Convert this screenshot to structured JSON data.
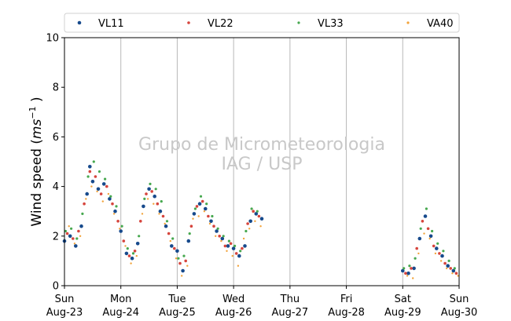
{
  "chart_data": {
    "type": "scatter",
    "title": "",
    "ylabel_main": "Wind speed (",
    "ylabel_unit": "ms",
    "ylabel_exp": "−1",
    "ylabel_close": " )",
    "xlabel": "",
    "watermark": [
      "Grupo de Micrometeorologia",
      "IAG / USP"
    ],
    "ylim": [
      0,
      10
    ],
    "xlim": [
      0,
      7
    ],
    "yticks": [
      "0",
      "2",
      "4",
      "6",
      "8",
      "10"
    ],
    "xticks": [
      {
        "day": "Sun",
        "date": "Aug-23"
      },
      {
        "day": "Mon",
        "date": "Aug-24"
      },
      {
        "day": "Tue",
        "date": "Aug-25"
      },
      {
        "day": "Wed",
        "date": "Aug-26"
      },
      {
        "day": "Thu",
        "date": "Aug-27"
      },
      {
        "day": "Fri",
        "date": "Aug-28"
      },
      {
        "day": "Sat",
        "date": "Aug-29"
      },
      {
        "day": "Sun",
        "date": "Aug-30"
      }
    ],
    "grid": "x-major",
    "legend_position": "top",
    "series": [
      {
        "name": "VL11",
        "color": "#174a8c",
        "marker_size": 2.3,
        "points": [
          [
            0.0,
            1.8
          ],
          [
            0.1,
            2.0
          ],
          [
            0.2,
            1.6
          ],
          [
            0.3,
            2.4
          ],
          [
            0.4,
            3.7
          ],
          [
            0.45,
            4.8
          ],
          [
            0.5,
            4.2
          ],
          [
            0.6,
            3.9
          ],
          [
            0.7,
            4.1
          ],
          [
            0.8,
            3.5
          ],
          [
            0.9,
            3.0
          ],
          [
            1.0,
            2.2
          ],
          [
            1.1,
            1.3
          ],
          [
            1.2,
            1.1
          ],
          [
            1.3,
            1.7
          ],
          [
            1.4,
            3.2
          ],
          [
            1.5,
            3.9
          ],
          [
            1.6,
            3.6
          ],
          [
            1.7,
            3.0
          ],
          [
            1.8,
            2.4
          ],
          [
            1.9,
            1.6
          ],
          [
            2.0,
            1.4
          ],
          [
            2.1,
            0.6
          ],
          [
            2.2,
            1.8
          ],
          [
            2.3,
            2.9
          ],
          [
            2.4,
            3.3
          ],
          [
            2.5,
            3.1
          ],
          [
            2.6,
            2.6
          ],
          [
            2.7,
            2.2
          ],
          [
            2.8,
            1.9
          ],
          [
            2.9,
            1.6
          ],
          [
            3.0,
            1.5
          ],
          [
            3.1,
            1.2
          ],
          [
            3.2,
            1.6
          ],
          [
            3.3,
            2.6
          ],
          [
            3.4,
            2.9
          ],
          [
            3.5,
            2.7
          ],
          [
            6.0,
            0.6
          ],
          [
            6.1,
            0.5
          ],
          [
            6.2,
            0.7
          ],
          [
            6.3,
            1.9
          ],
          [
            6.4,
            2.8
          ],
          [
            6.5,
            2.0
          ],
          [
            6.6,
            1.5
          ],
          [
            6.7,
            1.2
          ],
          [
            6.8,
            0.8
          ],
          [
            6.9,
            0.6
          ]
        ]
      },
      {
        "name": "VL22",
        "color": "#d6453d",
        "marker_size": 1.8,
        "points": [
          [
            0.05,
            2.1
          ],
          [
            0.15,
            1.9
          ],
          [
            0.25,
            2.2
          ],
          [
            0.35,
            3.3
          ],
          [
            0.45,
            4.6
          ],
          [
            0.55,
            4.4
          ],
          [
            0.65,
            3.7
          ],
          [
            0.75,
            4.0
          ],
          [
            0.85,
            3.3
          ],
          [
            0.95,
            2.6
          ],
          [
            1.05,
            1.8
          ],
          [
            1.15,
            1.2
          ],
          [
            1.25,
            1.4
          ],
          [
            1.35,
            2.6
          ],
          [
            1.45,
            3.7
          ],
          [
            1.55,
            3.8
          ],
          [
            1.65,
            3.3
          ],
          [
            1.75,
            2.8
          ],
          [
            1.85,
            2.1
          ],
          [
            1.95,
            1.5
          ],
          [
            2.05,
            0.9
          ],
          [
            2.15,
            1.0
          ],
          [
            2.25,
            2.4
          ],
          [
            2.35,
            3.2
          ],
          [
            2.45,
            3.4
          ],
          [
            2.55,
            2.8
          ],
          [
            2.65,
            2.4
          ],
          [
            2.75,
            2.0
          ],
          [
            2.85,
            1.6
          ],
          [
            2.95,
            1.7
          ],
          [
            3.05,
            1.3
          ],
          [
            3.15,
            1.5
          ],
          [
            3.25,
            2.5
          ],
          [
            3.35,
            3.0
          ],
          [
            3.45,
            2.8
          ],
          [
            6.05,
            0.5
          ],
          [
            6.15,
            0.7
          ],
          [
            6.25,
            1.5
          ],
          [
            6.35,
            2.6
          ],
          [
            6.45,
            2.3
          ],
          [
            6.55,
            1.6
          ],
          [
            6.65,
            1.3
          ],
          [
            6.75,
            0.9
          ],
          [
            6.85,
            0.7
          ],
          [
            6.95,
            0.5
          ]
        ]
      },
      {
        "name": "VL33",
        "color": "#47a84f",
        "marker_size": 1.6,
        "points": [
          [
            0.02,
            2.2
          ],
          [
            0.12,
            2.3
          ],
          [
            0.22,
            1.9
          ],
          [
            0.32,
            2.9
          ],
          [
            0.42,
            4.4
          ],
          [
            0.52,
            5.0
          ],
          [
            0.62,
            4.6
          ],
          [
            0.72,
            4.3
          ],
          [
            0.82,
            3.6
          ],
          [
            0.92,
            3.2
          ],
          [
            1.02,
            2.4
          ],
          [
            1.12,
            1.5
          ],
          [
            1.22,
            1.3
          ],
          [
            1.32,
            2.0
          ],
          [
            1.42,
            3.5
          ],
          [
            1.52,
            4.1
          ],
          [
            1.62,
            3.9
          ],
          [
            1.72,
            3.4
          ],
          [
            1.82,
            2.6
          ],
          [
            1.92,
            1.9
          ],
          [
            2.02,
            1.1
          ],
          [
            2.12,
            1.2
          ],
          [
            2.22,
            2.1
          ],
          [
            2.32,
            3.1
          ],
          [
            2.42,
            3.6
          ],
          [
            2.52,
            3.3
          ],
          [
            2.62,
            2.8
          ],
          [
            2.72,
            2.3
          ],
          [
            2.82,
            2.0
          ],
          [
            2.92,
            1.8
          ],
          [
            3.02,
            1.6
          ],
          [
            3.12,
            1.4
          ],
          [
            3.22,
            2.2
          ],
          [
            3.32,
            3.1
          ],
          [
            3.42,
            3.0
          ],
          [
            6.02,
            0.7
          ],
          [
            6.12,
            0.8
          ],
          [
            6.22,
            1.1
          ],
          [
            6.32,
            2.3
          ],
          [
            6.42,
            3.1
          ],
          [
            6.52,
            2.2
          ],
          [
            6.62,
            1.7
          ],
          [
            6.72,
            1.4
          ],
          [
            6.82,
            1.0
          ],
          [
            6.92,
            0.7
          ]
        ]
      },
      {
        "name": "VA40",
        "color": "#f2a33a",
        "marker_size": 1.2,
        "points": [
          [
            0.08,
            2.4
          ],
          [
            0.18,
            1.7
          ],
          [
            0.28,
            2.0
          ],
          [
            0.38,
            3.5
          ],
          [
            0.48,
            4.0
          ],
          [
            0.58,
            3.8
          ],
          [
            0.68,
            3.4
          ],
          [
            0.78,
            3.7
          ],
          [
            0.88,
            2.9
          ],
          [
            0.98,
            2.3
          ],
          [
            1.08,
            1.6
          ],
          [
            1.18,
            0.9
          ],
          [
            1.28,
            1.2
          ],
          [
            1.38,
            2.9
          ],
          [
            1.48,
            3.5
          ],
          [
            1.58,
            3.3
          ],
          [
            1.68,
            2.9
          ],
          [
            1.78,
            2.5
          ],
          [
            1.88,
            1.8
          ],
          [
            1.98,
            1.1
          ],
          [
            2.08,
            0.4
          ],
          [
            2.18,
            0.8
          ],
          [
            2.28,
            2.7
          ],
          [
            2.38,
            2.8
          ],
          [
            2.48,
            3.0
          ],
          [
            2.58,
            2.5
          ],
          [
            2.68,
            2.0
          ],
          [
            2.78,
            1.8
          ],
          [
            2.88,
            1.4
          ],
          [
            2.98,
            1.2
          ],
          [
            3.08,
            0.8
          ],
          [
            3.18,
            1.9
          ],
          [
            3.28,
            2.3
          ],
          [
            3.38,
            2.6
          ],
          [
            3.48,
            2.4
          ],
          [
            6.08,
            0.4
          ],
          [
            6.18,
            0.3
          ],
          [
            6.28,
            1.3
          ],
          [
            6.38,
            2.1
          ],
          [
            6.48,
            1.9
          ],
          [
            6.58,
            1.3
          ],
          [
            6.68,
            1.0
          ],
          [
            6.78,
            0.7
          ],
          [
            6.88,
            0.5
          ],
          [
            6.98,
            0.4
          ]
        ]
      }
    ]
  }
}
